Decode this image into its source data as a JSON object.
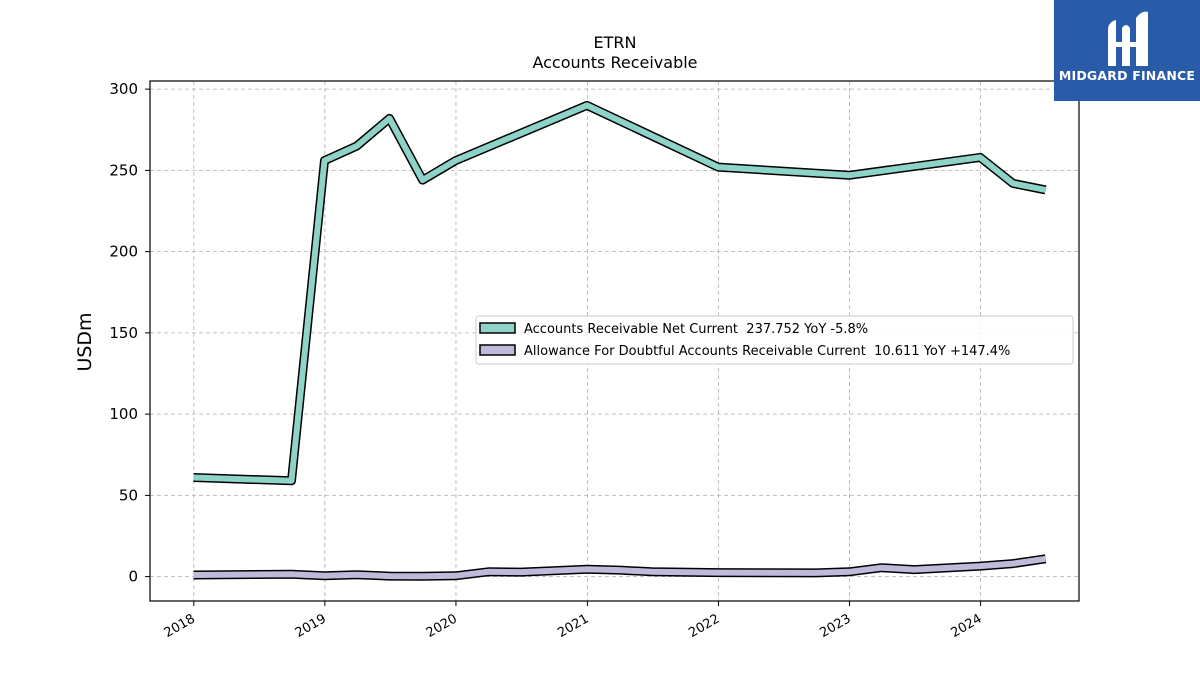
{
  "chart_data": {
    "type": "line",
    "title": "ETRN",
    "subtitle": "Accounts Receivable",
    "ylabel": "USDm",
    "xlabel": "",
    "ylim": [
      -15,
      305
    ],
    "xlim": [
      "2017-09-01",
      "2024-10-01"
    ],
    "yticks": [
      0,
      50,
      100,
      150,
      200,
      250,
      300
    ],
    "xticks": [
      "2018",
      "2019",
      "2020",
      "2021",
      "2022",
      "2023",
      "2024"
    ],
    "grid": true,
    "legend_position": "center-right",
    "series": [
      {
        "name": "Accounts Receivable Net Current  237.752 YoY -5.8%",
        "color": "#8dd3c7",
        "x": [
          "2017-12-31",
          "2018-09-30",
          "2018-12-31",
          "2019-03-31",
          "2019-06-30",
          "2019-09-30",
          "2019-12-31",
          "2020-12-31",
          "2021-12-31",
          "2022-12-31",
          "2023-12-31",
          "2024-03-31",
          "2024-06-30"
        ],
        "y": [
          61,
          59,
          256,
          265,
          282,
          244,
          256,
          290,
          252,
          247,
          258,
          242,
          238
        ]
      },
      {
        "name": "Allowance For Doubtful Accounts Receivable Current  10.611 YoY +147.4%",
        "color": "#bebada",
        "x": [
          "2017-12-31",
          "2018-09-30",
          "2018-12-31",
          "2019-03-31",
          "2019-06-30",
          "2019-09-30",
          "2019-12-31",
          "2020-03-31",
          "2020-06-30",
          "2020-12-31",
          "2021-03-31",
          "2021-06-30",
          "2021-12-31",
          "2022-09-30",
          "2022-12-31",
          "2023-03-31",
          "2023-06-30",
          "2023-12-31",
          "2024-03-31",
          "2024-06-30"
        ],
        "y": [
          1,
          1.5,
          0.5,
          1.2,
          0.3,
          0.2,
          0.5,
          3,
          2.8,
          4.5,
          4,
          3,
          2.5,
          2.3,
          3,
          5.5,
          4.3,
          6.5,
          8,
          11
        ]
      }
    ]
  },
  "branding": {
    "logo_text": "MIDGARD FINANCE",
    "logo_color": "#2a5ba8"
  }
}
